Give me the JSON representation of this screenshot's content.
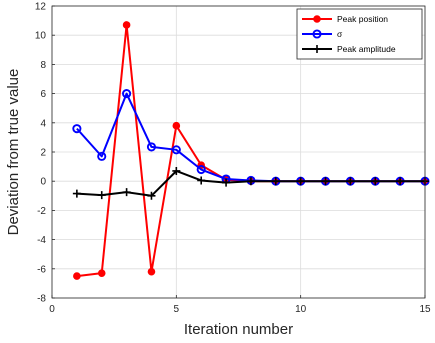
{
  "chart_data": {
    "type": "line",
    "title": "",
    "xlabel": "Iteration number",
    "ylabel": "Deviation from true value",
    "xlim": [
      0,
      15
    ],
    "ylim": [
      -8,
      12
    ],
    "xticks": [
      0,
      5,
      10,
      15
    ],
    "yticks": [
      -8,
      -6,
      -4,
      -2,
      0,
      2,
      4,
      6,
      8,
      10,
      12
    ],
    "grid": true,
    "legend_position": "top-right",
    "series": [
      {
        "name": "Peak position",
        "color": "#ff0000",
        "marker": "filled-circle",
        "x": [
          1,
          2,
          3,
          4,
          5,
          6,
          7,
          8,
          9,
          10,
          11,
          12,
          13,
          14,
          15
        ],
        "values": [
          -6.5,
          -6.3,
          10.7,
          -6.2,
          3.8,
          1.1,
          0.1,
          0.0,
          0.0,
          0.0,
          0.0,
          0.0,
          0.0,
          0.0,
          0.0
        ]
      },
      {
        "name": "σ",
        "color": "#0000ff",
        "marker": "open-circle",
        "x": [
          1,
          2,
          3,
          4,
          5,
          6,
          7,
          8,
          9,
          10,
          11,
          12,
          13,
          14,
          15
        ],
        "values": [
          3.6,
          1.7,
          6.0,
          2.35,
          2.15,
          0.8,
          0.15,
          0.05,
          0.0,
          0.0,
          0.0,
          0.0,
          0.0,
          0.0,
          0.0
        ]
      },
      {
        "name": "Peak amplitude",
        "color": "#000000",
        "marker": "plus",
        "x": [
          1,
          2,
          3,
          4,
          5,
          6,
          7,
          8,
          9,
          10,
          11,
          12,
          13,
          14,
          15
        ],
        "values": [
          -0.85,
          -0.95,
          -0.75,
          -1.0,
          0.7,
          0.05,
          -0.1,
          0.0,
          0.0,
          0.0,
          0.0,
          0.0,
          0.0,
          0.0,
          0.0
        ]
      }
    ]
  }
}
